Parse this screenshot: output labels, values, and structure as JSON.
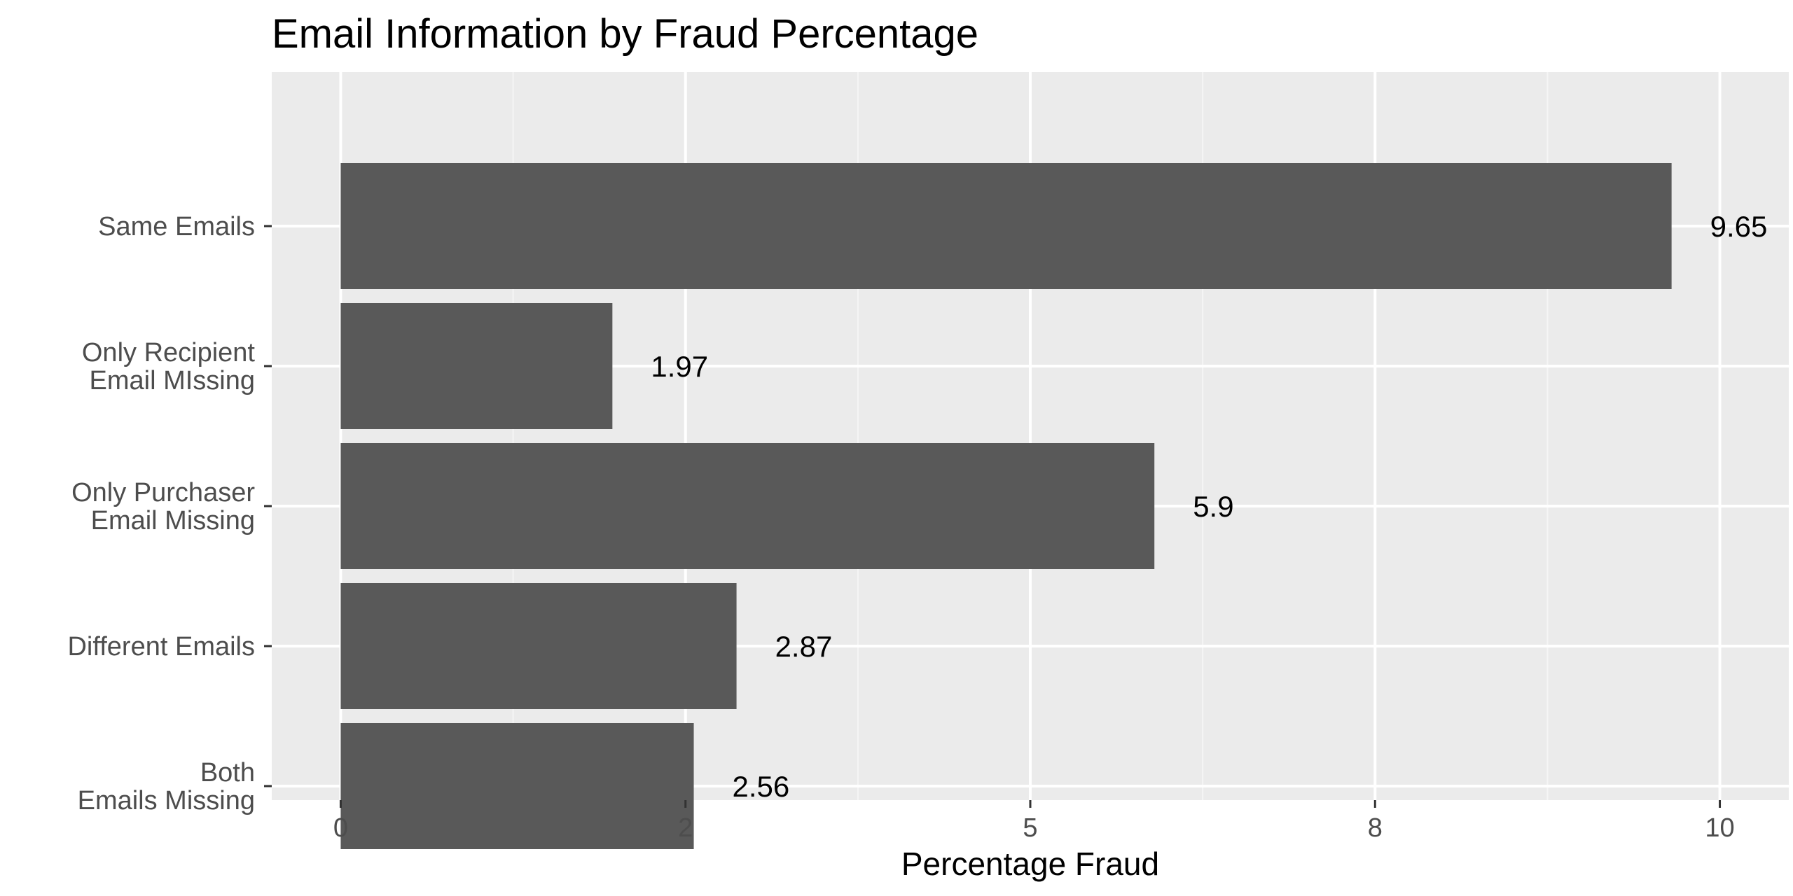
{
  "chart_data": {
    "type": "bar",
    "orientation": "horizontal",
    "title": "Email Information by Fraud Percentage",
    "xlabel": "Percentage Fraud",
    "ylabel": "",
    "categories": [
      "Same Emails",
      "Only Recipient\nEmail MIssing",
      "Only Purchaser\nEmail Missing",
      "Different Emails",
      "Both\nEmails Missing"
    ],
    "values": [
      9.65,
      1.97,
      5.9,
      2.87,
      2.56
    ],
    "data_labels": [
      "9.65",
      "1.97",
      "5.9",
      "2.87",
      "2.56"
    ],
    "x_ticks": [
      0,
      2.5,
      5,
      7.5,
      10
    ],
    "x_tick_labels": [
      "0",
      "2",
      "5",
      "8",
      "10"
    ],
    "xlim": [
      -0.5,
      10.5
    ],
    "grid": true,
    "legend": "none",
    "colors": {
      "bar": "#595959",
      "panel_background": "#ebebeb",
      "grid_major": "#ffffff",
      "grid_minor": "#f5f5f5"
    }
  }
}
